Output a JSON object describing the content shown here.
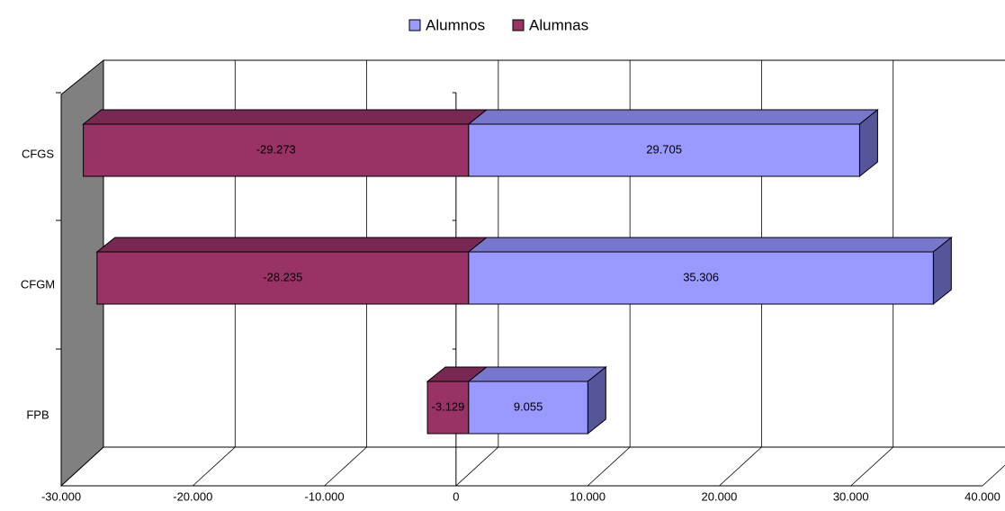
{
  "chart_data": {
    "type": "bar",
    "orientation": "horizontal",
    "stacking": "diverging",
    "three_d": true,
    "title": "",
    "xlabel": "",
    "ylabel": "",
    "categories": [
      "CFGS",
      "CFGM",
      "FPB"
    ],
    "series": [
      {
        "name": "Alumnos",
        "values": [
          29705,
          35306,
          9055
        ],
        "labels": [
          "29.705",
          "35.306",
          "9.055"
        ],
        "color": "#9999FF",
        "top_color": "#7777CC",
        "side_color": "#555599"
      },
      {
        "name": "Alumnas",
        "values": [
          -29273,
          -28235,
          -3129
        ],
        "labels": [
          "-29.273",
          "-28.235",
          "-3.129"
        ],
        "color": "#993366",
        "top_color": "#772952",
        "side_color": "#5A1F3D"
      }
    ],
    "xlim": [
      -30000,
      40000
    ],
    "xticks": [
      -30000,
      -20000,
      -10000,
      0,
      10000,
      20000,
      30000,
      40000
    ],
    "xtick_labels": [
      "-30.000",
      "-20.000",
      "-10.000",
      "0",
      "10.000",
      "20.000",
      "30.000",
      "40.000"
    ],
    "grid": true,
    "legend_position": "top",
    "wall_color": "#808080"
  }
}
